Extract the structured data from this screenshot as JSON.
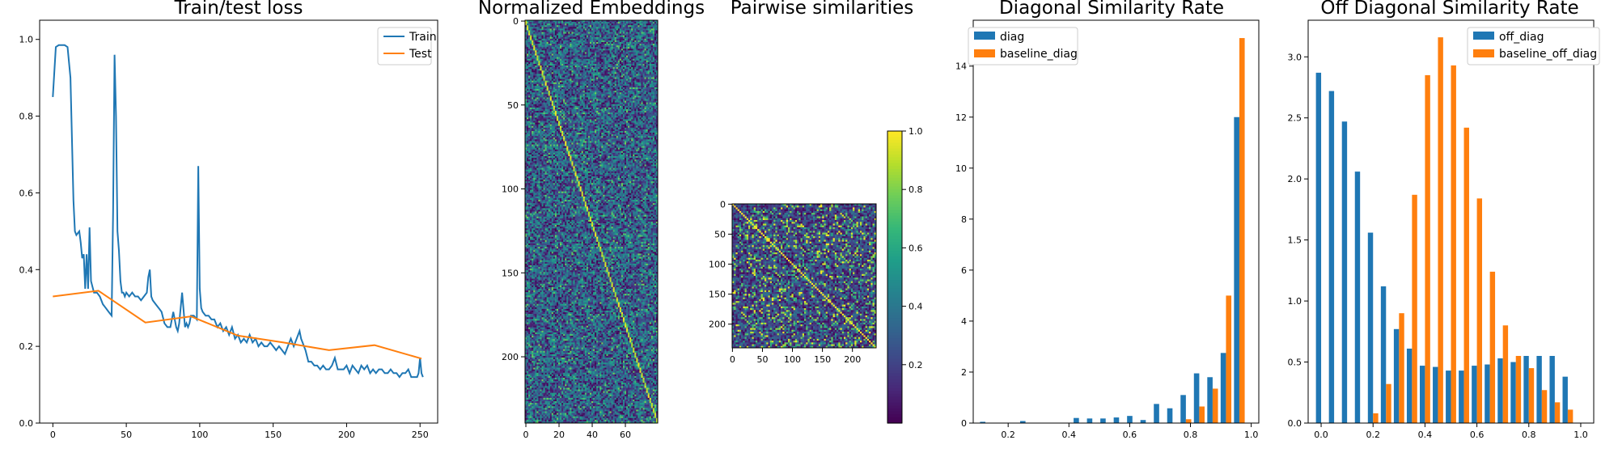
{
  "chart_data": [
    {
      "type": "line",
      "title": "Train/test loss",
      "xlim": [
        -9,
        262
      ],
      "ylim": [
        0,
        1.05
      ],
      "xticks": [
        0,
        50,
        100,
        150,
        200,
        250
      ],
      "yticks": [
        0.0,
        0.2,
        0.4,
        0.6,
        0.8,
        1.0
      ],
      "legend_position": "upper right",
      "series": [
        {
          "name": "Train",
          "color": "#1f77b4",
          "x": [
            0,
            2,
            4,
            6,
            8,
            10,
            12,
            14,
            15,
            16,
            17,
            18,
            19,
            20,
            21,
            22,
            23,
            24,
            25,
            26,
            28,
            30,
            32,
            34,
            36,
            38,
            40,
            41,
            42,
            43,
            44,
            45,
            46,
            47,
            48,
            49,
            50,
            52,
            54,
            56,
            58,
            60,
            62,
            64,
            65,
            66,
            67,
            68,
            70,
            72,
            74,
            76,
            78,
            80,
            82,
            84,
            85,
            86,
            88,
            90,
            91,
            92,
            93,
            94,
            96,
            98,
            99,
            100,
            101,
            102,
            104,
            106,
            108,
            110,
            112,
            114,
            116,
            118,
            120,
            122,
            124,
            126,
            128,
            130,
            132,
            134,
            136,
            138,
            140,
            142,
            144,
            146,
            148,
            150,
            152,
            154,
            156,
            158,
            160,
            162,
            164,
            166,
            168,
            169,
            170,
            172,
            174,
            176,
            178,
            180,
            182,
            184,
            186,
            188,
            190,
            192,
            194,
            196,
            198,
            200,
            202,
            204,
            206,
            208,
            210,
            212,
            214,
            216,
            218,
            220,
            222,
            224,
            226,
            228,
            230,
            232,
            234,
            236,
            238,
            240,
            242,
            244,
            246,
            248,
            249,
            250,
            251,
            252
          ],
          "y": [
            0.85,
            0.98,
            0.985,
            0.985,
            0.985,
            0.98,
            0.9,
            0.58,
            0.5,
            0.49,
            0.495,
            0.5,
            0.47,
            0.43,
            0.44,
            0.35,
            0.44,
            0.35,
            0.51,
            0.37,
            0.34,
            0.34,
            0.33,
            0.31,
            0.3,
            0.29,
            0.28,
            0.55,
            0.96,
            0.8,
            0.5,
            0.45,
            0.37,
            0.34,
            0.34,
            0.33,
            0.34,
            0.33,
            0.34,
            0.33,
            0.33,
            0.32,
            0.33,
            0.34,
            0.38,
            0.4,
            0.33,
            0.32,
            0.31,
            0.3,
            0.29,
            0.26,
            0.25,
            0.25,
            0.29,
            0.25,
            0.24,
            0.26,
            0.34,
            0.25,
            0.26,
            0.25,
            0.26,
            0.28,
            0.28,
            0.27,
            0.67,
            0.35,
            0.3,
            0.29,
            0.28,
            0.28,
            0.27,
            0.27,
            0.25,
            0.26,
            0.24,
            0.25,
            0.23,
            0.25,
            0.22,
            0.23,
            0.21,
            0.22,
            0.21,
            0.23,
            0.21,
            0.22,
            0.2,
            0.21,
            0.2,
            0.2,
            0.21,
            0.2,
            0.19,
            0.2,
            0.19,
            0.18,
            0.2,
            0.22,
            0.2,
            0.22,
            0.24,
            0.22,
            0.21,
            0.19,
            0.16,
            0.16,
            0.15,
            0.15,
            0.14,
            0.15,
            0.14,
            0.14,
            0.15,
            0.17,
            0.14,
            0.14,
            0.14,
            0.15,
            0.13,
            0.15,
            0.14,
            0.13,
            0.15,
            0.14,
            0.15,
            0.13,
            0.14,
            0.13,
            0.14,
            0.14,
            0.13,
            0.13,
            0.14,
            0.13,
            0.13,
            0.12,
            0.13,
            0.13,
            0.14,
            0.12,
            0.12,
            0.12,
            0.13,
            0.17,
            0.13,
            0.12
          ]
        },
        {
          "name": "Test",
          "color": "#ff7f0e",
          "x": [
            0,
            31,
            63,
            94,
            126,
            157,
            188,
            219,
            251
          ],
          "y": [
            0.33,
            0.345,
            0.262,
            0.278,
            0.228,
            0.21,
            0.19,
            0.203,
            0.168
          ]
        }
      ]
    },
    {
      "type": "heatmap",
      "title": "Normalized Embeddings",
      "rows": 240,
      "cols": 80,
      "xticks": [
        0,
        20,
        40,
        60
      ],
      "yticks": [
        0,
        50,
        100,
        150,
        200
      ],
      "colormap": "viridis"
    },
    {
      "type": "heatmap",
      "title": "Pairwise similarities",
      "rows": 240,
      "cols": 240,
      "xticks": [
        0,
        50,
        100,
        150,
        200
      ],
      "yticks": [
        0,
        50,
        100,
        150,
        200
      ],
      "colormap": "viridis",
      "colorbar": {
        "ticks": [
          0.2,
          0.4,
          0.6,
          0.8,
          1.0
        ],
        "range": [
          0,
          1.0
        ]
      }
    },
    {
      "type": "bar",
      "title": "Diagonal Similarity Rate",
      "xlim": [
        0.085,
        1.025
      ],
      "ylim": [
        0,
        15.8
      ],
      "xticks": [
        0.2,
        0.4,
        0.6,
        0.8,
        1.0
      ],
      "yticks": [
        0,
        2,
        4,
        6,
        8,
        10,
        12,
        14
      ],
      "legend_position": "upper left",
      "bin_centers": [
        0.125,
        0.169,
        0.213,
        0.257,
        0.301,
        0.345,
        0.389,
        0.433,
        0.477,
        0.521,
        0.565,
        0.609,
        0.653,
        0.697,
        0.741,
        0.785,
        0.829,
        0.873,
        0.917,
        0.961,
        1.005
      ],
      "series": [
        {
          "name": "diag",
          "color": "#1f77b4",
          "values": [
            0.05,
            0,
            0,
            0.08,
            0,
            0,
            0,
            0.2,
            0.18,
            0.18,
            0.22,
            0.28,
            0.12,
            0.75,
            0.58,
            1.1,
            1.95,
            1.8,
            2.75,
            12.0,
            0
          ]
        },
        {
          "name": "baseline_diag",
          "color": "#ff7f0e",
          "values": [
            0,
            0,
            0,
            0,
            0,
            0,
            0,
            0,
            0,
            0,
            0,
            0,
            0,
            0,
            0,
            0.15,
            0.65,
            1.35,
            5.0,
            15.1,
            0
          ]
        }
      ]
    },
    {
      "type": "bar",
      "title": "Off Diagonal Similarity Rate",
      "xlim": [
        -0.05,
        1.05
      ],
      "ylim": [
        0,
        3.3
      ],
      "xticks": [
        0.0,
        0.2,
        0.4,
        0.6,
        0.8,
        1.0
      ],
      "yticks": [
        0.0,
        0.5,
        1.0,
        1.5,
        2.0,
        2.5,
        3.0
      ],
      "legend_position": "upper right",
      "bin_centers": [
        0.0,
        0.05,
        0.1,
        0.15,
        0.2,
        0.25,
        0.3,
        0.35,
        0.4,
        0.45,
        0.5,
        0.55,
        0.6,
        0.65,
        0.7,
        0.75,
        0.8,
        0.85,
        0.9,
        0.95
      ],
      "series": [
        {
          "name": "off_diag",
          "color": "#1f77b4",
          "values": [
            2.87,
            2.72,
            2.47,
            2.06,
            1.56,
            1.12,
            0.77,
            0.61,
            0.47,
            0.46,
            0.43,
            0.43,
            0.47,
            0.48,
            0.53,
            0.5,
            0.55,
            0.55,
            0.55,
            0.38
          ]
        },
        {
          "name": "baseline_off_diag",
          "color": "#ff7f0e",
          "values": [
            0,
            0,
            0,
            0,
            0.08,
            0.32,
            0.9,
            1.87,
            2.85,
            3.16,
            2.93,
            2.42,
            1.84,
            1.24,
            0.8,
            0.55,
            0.45,
            0.27,
            0.17,
            0.11
          ]
        }
      ]
    }
  ]
}
